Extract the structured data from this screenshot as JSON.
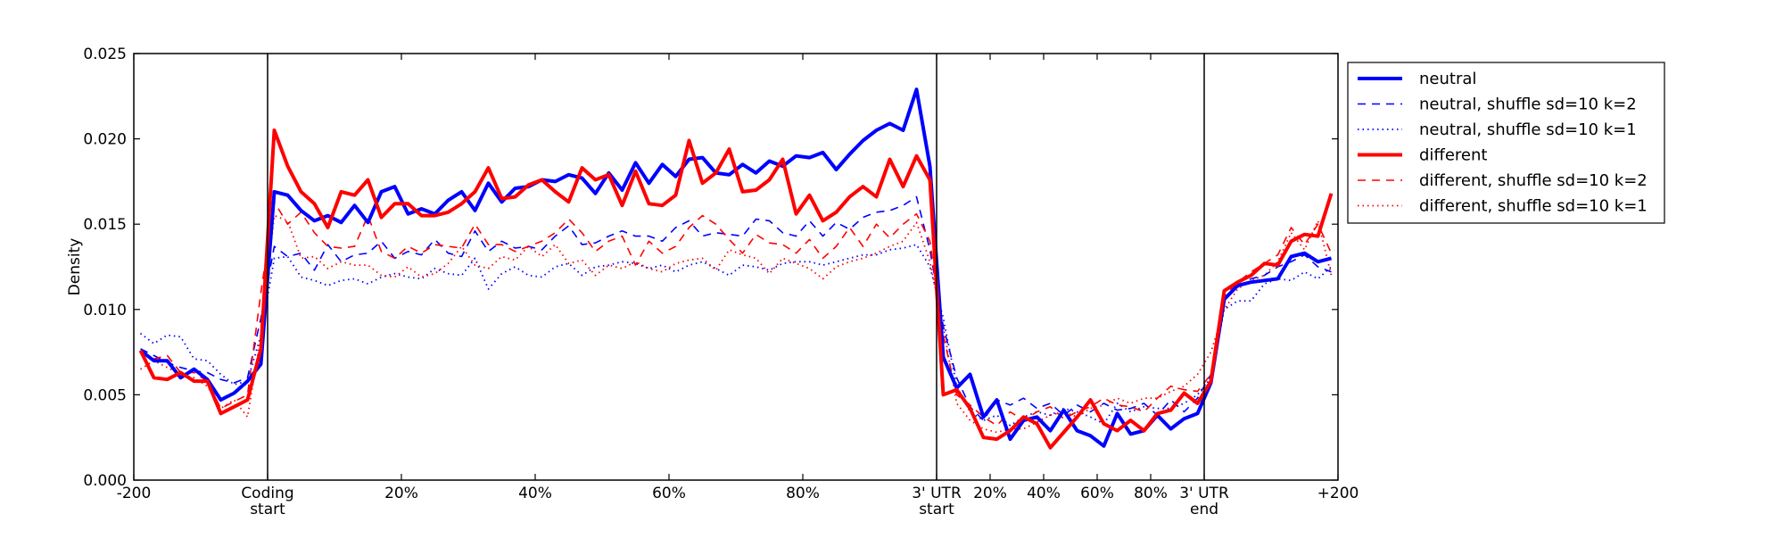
{
  "chart_data": {
    "type": "line",
    "title": "",
    "xlabel": "",
    "ylabel": "Density",
    "ylim": [
      0,
      0.025
    ],
    "xlim": [
      0,
      90
    ],
    "grid": false,
    "legend_placement": "outside-top-right",
    "x_note": "x is bin index along metagene: 0-10 upstream, 10-60 coding, 60-80 3' UTR, 80-90 downstream; points at bin centers",
    "y_ticks": [
      "0.000",
      "0.005",
      "0.010",
      "0.015",
      "0.020",
      "0.025"
    ],
    "y_tick_values": [
      0,
      0.005,
      0.01,
      0.015,
      0.02,
      0.025
    ],
    "x_ticks": [
      {
        "x": 0,
        "label": [
          "-200"
        ]
      },
      {
        "x": 10,
        "label": [
          "Coding",
          "start"
        ]
      },
      {
        "x": 20,
        "label": [
          "20%"
        ]
      },
      {
        "x": 30,
        "label": [
          "40%"
        ]
      },
      {
        "x": 40,
        "label": [
          "60%"
        ]
      },
      {
        "x": 50,
        "label": [
          "80%"
        ]
      },
      {
        "x": 60,
        "label": [
          "3' UTR",
          "start"
        ]
      },
      {
        "x": 64,
        "label": [
          "20%"
        ]
      },
      {
        "x": 68,
        "label": [
          "40%"
        ]
      },
      {
        "x": 72,
        "label": [
          "60%"
        ]
      },
      {
        "x": 76,
        "label": [
          "80%"
        ]
      },
      {
        "x": 80,
        "label": [
          "3' UTR",
          "end"
        ]
      },
      {
        "x": 90,
        "label": [
          "+200"
        ]
      }
    ],
    "vlines": [
      10,
      60,
      80
    ],
    "colors": {
      "neutral": "#0000ff",
      "different": "#ff0000"
    },
    "series": [
      {
        "name": "neutral",
        "color": "#0000ff",
        "style": "solid",
        "values": [
          0.0076,
          0.007,
          0.007,
          0.006,
          0.0065,
          0.0059,
          0.0047,
          0.0051,
          0.0058,
          0.0068,
          0.0169,
          0.0167,
          0.0158,
          0.0152,
          0.0155,
          0.0151,
          0.0161,
          0.0151,
          0.0169,
          0.0172,
          0.0156,
          0.0159,
          0.0156,
          0.0164,
          0.0169,
          0.0158,
          0.0174,
          0.0163,
          0.0171,
          0.0172,
          0.0176,
          0.0175,
          0.0179,
          0.0177,
          0.0168,
          0.018,
          0.017,
          0.0186,
          0.0174,
          0.0185,
          0.0178,
          0.0188,
          0.0189,
          0.018,
          0.0179,
          0.0185,
          0.018,
          0.0187,
          0.0184,
          0.019,
          0.0189,
          0.0192,
          0.0182,
          0.0191,
          0.0199,
          0.0205,
          0.0209,
          0.0205,
          0.0229,
          0.0184,
          0.0072,
          0.0054,
          0.0062,
          0.0037,
          0.0047,
          0.0024,
          0.0035,
          0.0037,
          0.0029,
          0.0041,
          0.0029,
          0.0026,
          0.002,
          0.0039,
          0.0027,
          0.0029,
          0.0038,
          0.003,
          0.0036,
          0.0039,
          0.0057,
          0.0106,
          0.0114,
          0.0116,
          0.0117,
          0.0118,
          0.0131,
          0.0133,
          0.0128,
          0.013
        ]
      },
      {
        "name": "neutral, shuffle sd=10 k=2",
        "color": "#0000ff",
        "style": "dashed",
        "values": [
          0.0077,
          0.0073,
          0.0069,
          0.0066,
          0.0064,
          0.0063,
          0.0059,
          0.0057,
          0.006,
          0.0095,
          0.0137,
          0.0131,
          0.0133,
          0.0123,
          0.0138,
          0.0128,
          0.0132,
          0.0133,
          0.014,
          0.013,
          0.0134,
          0.0132,
          0.0141,
          0.0133,
          0.0131,
          0.0146,
          0.0134,
          0.014,
          0.0136,
          0.0137,
          0.0135,
          0.0143,
          0.0149,
          0.0138,
          0.0139,
          0.0143,
          0.0146,
          0.0143,
          0.0143,
          0.014,
          0.0148,
          0.0152,
          0.0143,
          0.0145,
          0.0144,
          0.0143,
          0.0153,
          0.0152,
          0.0145,
          0.0143,
          0.0152,
          0.0143,
          0.0151,
          0.0147,
          0.0154,
          0.0157,
          0.0158,
          0.0161,
          0.0166,
          0.0135,
          0.009,
          0.006,
          0.0043,
          0.0035,
          0.0047,
          0.0044,
          0.0048,
          0.0042,
          0.0045,
          0.0038,
          0.0044,
          0.004,
          0.0045,
          0.0041,
          0.0042,
          0.0045,
          0.0038,
          0.0047,
          0.004,
          0.0048,
          0.0062,
          0.0107,
          0.0113,
          0.0118,
          0.012,
          0.0125,
          0.0128,
          0.0132,
          0.0125,
          0.0122
        ]
      },
      {
        "name": "neutral, shuffle sd=10 k=1",
        "color": "#0000ff",
        "style": "dotted",
        "values": [
          0.0086,
          0.008,
          0.0085,
          0.0084,
          0.0071,
          0.007,
          0.0062,
          0.0056,
          0.0058,
          0.0085,
          0.013,
          0.0131,
          0.0119,
          0.0117,
          0.0114,
          0.0117,
          0.0118,
          0.0115,
          0.0119,
          0.0121,
          0.0119,
          0.0118,
          0.0124,
          0.0121,
          0.012,
          0.013,
          0.0112,
          0.0121,
          0.0125,
          0.012,
          0.0119,
          0.0125,
          0.0127,
          0.012,
          0.0125,
          0.0126,
          0.0128,
          0.0127,
          0.0124,
          0.0126,
          0.0122,
          0.0126,
          0.0128,
          0.0124,
          0.012,
          0.0126,
          0.0125,
          0.0123,
          0.0127,
          0.0128,
          0.0128,
          0.0126,
          0.0128,
          0.013,
          0.0132,
          0.0132,
          0.0135,
          0.0136,
          0.0138,
          0.0125,
          0.0095,
          0.0055,
          0.004,
          0.0035,
          0.0038,
          0.0032,
          0.0037,
          0.004,
          0.0038,
          0.0042,
          0.004,
          0.0037,
          0.0033,
          0.0045,
          0.004,
          0.0043,
          0.0042,
          0.0042,
          0.0045,
          0.005,
          0.006,
          0.01,
          0.0105,
          0.0105,
          0.0115,
          0.0118,
          0.0117,
          0.0122,
          0.0118,
          0.0125
        ]
      },
      {
        "name": "different",
        "color": "#ff0000",
        "style": "solid",
        "values": [
          0.0076,
          0.006,
          0.0059,
          0.0063,
          0.0058,
          0.0058,
          0.0039,
          0.0043,
          0.0047,
          0.0077,
          0.0205,
          0.0184,
          0.0169,
          0.0162,
          0.0148,
          0.0169,
          0.0167,
          0.0176,
          0.0154,
          0.0162,
          0.0162,
          0.0155,
          0.0155,
          0.0157,
          0.0162,
          0.0169,
          0.0183,
          0.0165,
          0.0166,
          0.0173,
          0.0176,
          0.0169,
          0.0163,
          0.0183,
          0.0176,
          0.0179,
          0.0161,
          0.0181,
          0.0162,
          0.0161,
          0.0167,
          0.0199,
          0.0174,
          0.018,
          0.0194,
          0.0169,
          0.017,
          0.0176,
          0.0188,
          0.0156,
          0.0167,
          0.0152,
          0.0157,
          0.0166,
          0.0172,
          0.0166,
          0.0188,
          0.0172,
          0.019,
          0.0176,
          0.005,
          0.0053,
          0.0042,
          0.0025,
          0.0024,
          0.0029,
          0.0037,
          0.0033,
          0.0019,
          0.0028,
          0.0037,
          0.0047,
          0.0033,
          0.0029,
          0.0035,
          0.0029,
          0.0039,
          0.0041,
          0.0051,
          0.0045,
          0.0058,
          0.0111,
          0.0116,
          0.012,
          0.0127,
          0.0126,
          0.014,
          0.0144,
          0.0143,
          0.0168
        ]
      },
      {
        "name": "different, shuffle sd=10 k=2",
        "color": "#ff0000",
        "style": "dashed",
        "values": [
          0.0075,
          0.0071,
          0.0073,
          0.0063,
          0.0063,
          0.0058,
          0.0042,
          0.0046,
          0.005,
          0.011,
          0.0163,
          0.015,
          0.0157,
          0.0145,
          0.0137,
          0.0136,
          0.0137,
          0.0155,
          0.0134,
          0.013,
          0.0137,
          0.0133,
          0.0138,
          0.0137,
          0.0136,
          0.015,
          0.0138,
          0.0138,
          0.0134,
          0.0137,
          0.014,
          0.0145,
          0.0153,
          0.0145,
          0.0134,
          0.014,
          0.0143,
          0.0126,
          0.014,
          0.0133,
          0.0137,
          0.0148,
          0.0155,
          0.015,
          0.0141,
          0.0133,
          0.0144,
          0.0139,
          0.0138,
          0.0133,
          0.0141,
          0.013,
          0.0137,
          0.0148,
          0.0137,
          0.015,
          0.0142,
          0.015,
          0.0156,
          0.014,
          0.0085,
          0.005,
          0.0044,
          0.0037,
          0.0032,
          0.004,
          0.0035,
          0.004,
          0.0043,
          0.0036,
          0.004,
          0.0043,
          0.0048,
          0.0044,
          0.0043,
          0.004,
          0.0048,
          0.0055,
          0.0053,
          0.0052,
          0.0062,
          0.0108,
          0.0116,
          0.0122,
          0.0127,
          0.0132,
          0.0148,
          0.0138,
          0.015,
          0.0133
        ]
      },
      {
        "name": "different, shuffle sd=10 k=1",
        "color": "#ff0000",
        "style": "dotted",
        "values": [
          0.0065,
          0.007,
          0.0066,
          0.0062,
          0.006,
          0.0055,
          0.0042,
          0.0047,
          0.0037,
          0.0085,
          0.0155,
          0.0152,
          0.013,
          0.0131,
          0.0124,
          0.0128,
          0.0126,
          0.0126,
          0.012,
          0.0119,
          0.0125,
          0.0119,
          0.0121,
          0.0127,
          0.0137,
          0.0126,
          0.0124,
          0.0131,
          0.0129,
          0.0137,
          0.0131,
          0.0138,
          0.0127,
          0.0129,
          0.012,
          0.0126,
          0.0124,
          0.0128,
          0.0124,
          0.0122,
          0.0127,
          0.0129,
          0.013,
          0.0123,
          0.0135,
          0.0132,
          0.013,
          0.0121,
          0.013,
          0.0127,
          0.0124,
          0.0118,
          0.0125,
          0.0128,
          0.013,
          0.0133,
          0.0137,
          0.014,
          0.0151,
          0.0128,
          0.009,
          0.0045,
          0.0035,
          0.003,
          0.0028,
          0.003,
          0.003,
          0.0034,
          0.0038,
          0.004,
          0.0037,
          0.0042,
          0.0044,
          0.0048,
          0.0045,
          0.0048,
          0.0048,
          0.0052,
          0.0055,
          0.0062,
          0.0075,
          0.01,
          0.0112,
          0.0117,
          0.012,
          0.0128,
          0.0145,
          0.0135,
          0.0152,
          0.012
        ]
      }
    ]
  }
}
